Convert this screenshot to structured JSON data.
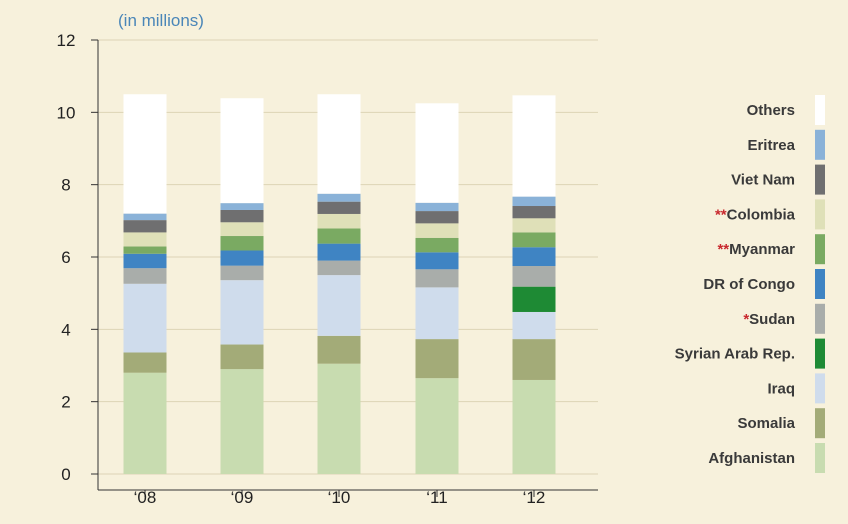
{
  "chart_data": {
    "type": "bar",
    "stacked": true,
    "unit_label": "(in millions)",
    "categories": [
      "‘08",
      "‘09",
      "‘10",
      "‘11",
      "‘12"
    ],
    "ylim": [
      0,
      12
    ],
    "yticks": [
      0,
      2,
      4,
      6,
      8,
      10,
      12
    ],
    "grid": true,
    "legend_position": "right",
    "series": [
      {
        "name": "Afghanistan",
        "prefix": "",
        "color": "#c8dcb0",
        "values": [
          2.8,
          2.9,
          3.05,
          2.65,
          2.6
        ]
      },
      {
        "name": "Somalia",
        "prefix": "",
        "color": "#a3ab78",
        "values": [
          0.56,
          0.68,
          0.77,
          1.08,
          1.13
        ]
      },
      {
        "name": "Iraq",
        "prefix": "",
        "color": "#cfdcec",
        "values": [
          1.9,
          1.78,
          1.68,
          1.43,
          0.75
        ]
      },
      {
        "name": "Syrian Arab Rep.",
        "prefix": "",
        "color": "#1e8a34",
        "values": [
          0,
          0,
          0,
          0,
          0.7
        ]
      },
      {
        "name": "Sudan",
        "prefix": "*",
        "color": "#a9adaa",
        "values": [
          0.43,
          0.4,
          0.4,
          0.5,
          0.57
        ]
      },
      {
        "name": "DR of Congo",
        "prefix": "",
        "color": "#3f84c3",
        "values": [
          0.4,
          0.42,
          0.47,
          0.47,
          0.52
        ]
      },
      {
        "name": "Myanmar",
        "prefix": "**",
        "color": "#7aaa62",
        "values": [
          0.2,
          0.4,
          0.42,
          0.4,
          0.41
        ]
      },
      {
        "name": "Colombia",
        "prefix": "**",
        "color": "#dfe0b8",
        "values": [
          0.39,
          0.38,
          0.4,
          0.4,
          0.39
        ]
      },
      {
        "name": "Viet Nam",
        "prefix": "",
        "color": "#6f6f70",
        "values": [
          0.34,
          0.34,
          0.34,
          0.34,
          0.34
        ]
      },
      {
        "name": "Eritrea",
        "prefix": "",
        "color": "#8ab2d8",
        "values": [
          0.18,
          0.19,
          0.22,
          0.23,
          0.26
        ]
      },
      {
        "name": "Others",
        "prefix": "",
        "color": "#ffffff",
        "values": [
          3.3,
          2.9,
          2.75,
          2.75,
          2.8
        ]
      }
    ]
  }
}
